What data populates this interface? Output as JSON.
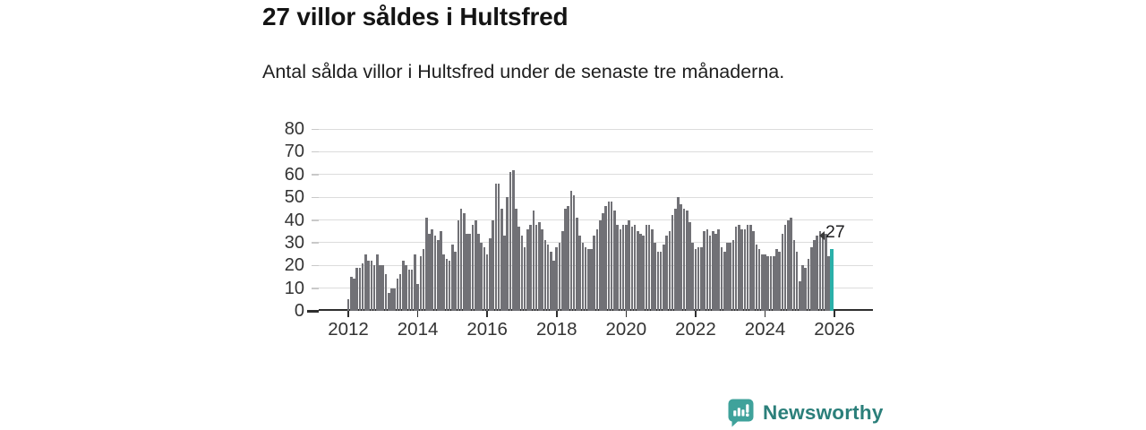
{
  "header": {
    "title": "27 villor såldes i Hultsfred",
    "subtitle": "Antal sålda villor i Hultsfred under de senaste tre månaderna."
  },
  "annotation": {
    "value": "27"
  },
  "branding": {
    "name": "Newsworthy",
    "logo_icon": "speech-bubble-bar-chart-exclamation"
  },
  "colors": {
    "bar": "#717176",
    "highlight": "#2ab0a9",
    "grid": "#dcdcdc",
    "axis": "#2e2e2e",
    "tick_text": "#333333",
    "logo": "#3fa29b",
    "logo_text": "#2b7f7a"
  },
  "chart_data": {
    "type": "bar",
    "title": "27 villor såldes i Hultsfred",
    "subtitle": "Antal sålda villor i Hultsfred under de senaste tre månaderna.",
    "unit": "sålda villor per 3-månadersperiod",
    "x_start": "2012-01",
    "x_end": "2025-12",
    "x_tick_labels": [
      "2012",
      "2014",
      "2016",
      "2018",
      "2020",
      "2022",
      "2024",
      "2026"
    ],
    "y_ticks": [
      0,
      10,
      20,
      30,
      40,
      50,
      60,
      70,
      80
    ],
    "ylim": [
      0,
      80
    ],
    "grid": "horizontal",
    "legend": "none",
    "highlight_last_value": 27,
    "values": [
      5,
      15,
      14,
      19,
      19,
      21,
      25,
      22,
      22,
      20,
      25,
      20,
      20,
      16,
      8,
      10,
      10,
      14,
      16,
      22,
      20,
      18,
      18,
      25,
      12,
      24,
      27,
      41,
      34,
      36,
      33,
      31,
      35,
      25,
      23,
      22,
      29,
      26,
      40,
      45,
      43,
      34,
      34,
      38,
      40,
      34,
      30,
      28,
      25,
      32,
      40,
      56,
      56,
      45,
      33,
      50,
      61,
      62,
      45,
      37,
      33,
      28,
      36,
      38,
      44,
      38,
      39,
      36,
      31,
      29,
      26,
      22,
      28,
      30,
      35,
      45,
      46,
      53,
      51,
      41,
      33,
      30,
      28,
      27,
      27,
      33,
      36,
      40,
      43,
      46,
      48,
      48,
      44,
      38,
      36,
      38,
      38,
      40,
      37,
      38,
      35,
      34,
      33,
      38,
      38,
      36,
      30,
      26,
      26,
      29,
      33,
      35,
      42,
      45,
      50,
      47,
      45,
      44,
      39,
      30,
      27,
      28,
      28,
      35,
      36,
      33,
      35,
      34,
      36,
      28,
      26,
      30,
      30,
      31,
      37,
      38,
      36,
      36,
      38,
      38,
      35,
      29,
      27,
      25,
      25,
      24,
      24,
      24,
      27,
      26,
      34,
      38,
      40,
      41,
      31,
      26,
      13,
      20,
      19,
      23,
      28,
      31,
      33,
      35,
      34,
      34,
      24,
      27
    ]
  }
}
